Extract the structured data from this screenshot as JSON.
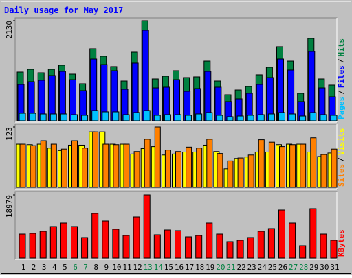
{
  "title": "Daily usage for May 2017",
  "chart_data": [
    {
      "type": "bar",
      "ylim": [
        0,
        2130
      ],
      "yticks": [
        2130
      ],
      "legend_separator": "/",
      "series": [
        {
          "name": "Hits",
          "color": "#008040",
          "values": [
            1036,
            1094,
            1021,
            1094,
            1182,
            992,
            788,
            1532,
            1372,
            1153,
            846,
            1459,
            2130,
            890,
            948,
            1065,
            919,
            934,
            1269,
            846,
            554,
            656,
            729,
            978,
            1138,
            1576,
            1269,
            584,
            1751,
            890,
            759
          ]
        },
        {
          "name": "Files",
          "color": "#0000ff",
          "values": [
            773,
            832,
            861,
            963,
            1050,
            875,
            642,
            1313,
            1196,
            1065,
            671,
            1226,
            1926,
            700,
            715,
            875,
            627,
            686,
            1050,
            715,
            409,
            467,
            584,
            773,
            919,
            1313,
            1080,
            409,
            1474,
            700,
            511
          ]
        },
        {
          "name": "Pages",
          "color": "#00c0ff",
          "values": [
            160,
            160,
            146,
            146,
            146,
            131,
            117,
            219,
            190,
            190,
            131,
            175,
            219,
            117,
            131,
            131,
            117,
            146,
            175,
            117,
            88,
            102,
            117,
            131,
            146,
            175,
            146,
            102,
            175,
            131,
            117
          ]
        }
      ]
    },
    {
      "type": "bar",
      "ylim": [
        0,
        123
      ],
      "yticks": [
        123
      ],
      "legend_separator": "/",
      "series": [
        {
          "name": "Visits",
          "color": "#ffff00",
          "values": [
            88,
            87,
            88,
            80,
            75,
            86,
            86,
            113,
            113,
            88,
            88,
            68,
            79,
            83,
            66,
            68,
            72,
            72,
            86,
            73,
            38,
            59,
            62,
            72,
            72,
            87,
            88,
            88,
            72,
            63,
            70
          ]
        },
        {
          "name": "Sites",
          "color": "#ff8000",
          "values": [
            88,
            85,
            95,
            88,
            78,
            95,
            80,
            113,
            88,
            87,
            88,
            73,
            98,
            123,
            76,
            73,
            82,
            80,
            98,
            69,
            54,
            60,
            66,
            97,
            92,
            83,
            87,
            88,
            101,
            67,
            78
          ]
        }
      ]
    },
    {
      "type": "bar",
      "ylim": [
        0,
        18979
      ],
      "yticks": [
        18979
      ],
      "categories": [
        "1",
        "2",
        "3",
        "4",
        "5",
        "6",
        "7",
        "8",
        "9",
        "10",
        "11",
        "12",
        "13",
        "14",
        "15",
        "16",
        "17",
        "18",
        "19",
        "20",
        "21",
        "22",
        "23",
        "24",
        "25",
        "26",
        "27",
        "28",
        "29",
        "30",
        "31"
      ],
      "category_colors": [
        "#000000",
        "#000000",
        "#000000",
        "#000000",
        "#000000",
        "#008040",
        "#008040",
        "#000000",
        "#000000",
        "#000000",
        "#000000",
        "#000000",
        "#008040",
        "#008040",
        "#000000",
        "#000000",
        "#000000",
        "#000000",
        "#000000",
        "#008040",
        "#008040",
        "#000000",
        "#000000",
        "#000000",
        "#000000",
        "#000000",
        "#008040",
        "#008040",
        "#000000",
        "#000000",
        "#000000"
      ],
      "series": [
        {
          "name": "KBytes",
          "color": "#ff0000",
          "values": [
            7220,
            7427,
            8046,
            9490,
            10522,
            9490,
            6189,
            13409,
            11140,
            8664,
            6808,
            12377,
            18979,
            7014,
            8458,
            8251,
            6395,
            6808,
            10522,
            7220,
            4951,
            5364,
            6189,
            8046,
            8871,
            14441,
            10522,
            3713,
            14853,
            7220,
            5364
          ]
        }
      ]
    }
  ]
}
